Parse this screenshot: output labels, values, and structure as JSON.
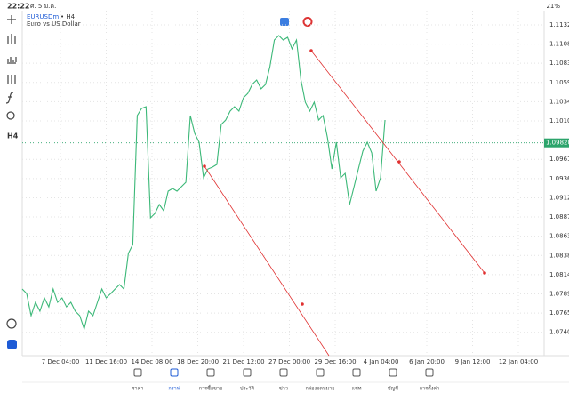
{
  "status_bar": {
    "time": "22:22",
    "date": "ศ. 5 ม.ค.",
    "battery": "21%"
  },
  "header": {
    "symbol": "EURUSDm",
    "timeframe": "• H4",
    "description": "Euro vs US Dollar"
  },
  "sidebar": {
    "timeframe": "H4"
  },
  "chart": {
    "ylim": [
      1.07107,
      1.11506
    ],
    "yticks": [
      {
        "value": 1.11325,
        "label": "1.11325"
      },
      {
        "value": 1.1108,
        "label": "1.11080"
      },
      {
        "value": 1.10835,
        "label": "1.10835"
      },
      {
        "value": 1.1059,
        "label": "1.10590"
      },
      {
        "value": 1.10345,
        "label": "1.10345"
      },
      {
        "value": 1.101,
        "label": "1.10100"
      },
      {
        "value": 1.0961,
        "label": "1.09610"
      },
      {
        "value": 1.09365,
        "label": "1.09365"
      },
      {
        "value": 1.0912,
        "label": "1.09120"
      },
      {
        "value": 1.08875,
        "label": "1.08875"
      },
      {
        "value": 1.0863,
        "label": "1.08630"
      },
      {
        "value": 1.08385,
        "label": "1.08385"
      },
      {
        "value": 1.0814,
        "label": "1.08140"
      },
      {
        "value": 1.07895,
        "label": "1.07895"
      },
      {
        "value": 1.0765,
        "label": "1.07650"
      },
      {
        "value": 1.07405,
        "label": "1.07405"
      }
    ],
    "xticks": [
      "7 Dec 04:00",
      "11 Dec 16:00",
      "14 Dec 08:00",
      "18 Dec 20:00",
      "21 Dec 12:00",
      "27 Dec 00:00",
      "29 Dec 16:00",
      "4 Jan 04:00",
      "6 Jan 20:00",
      "9 Jan 12:00",
      "12 Jan 04:00"
    ],
    "current_price": {
      "value": 1.0982,
      "label": "1.09820"
    },
    "values": [
      1.07957,
      1.079,
      1.07617,
      1.07787,
      1.07674,
      1.07844,
      1.0773,
      1.07957,
      1.07787,
      1.07844,
      1.0773,
      1.07787,
      1.07674,
      1.07617,
      1.07447,
      1.07674,
      1.07617,
      1.07787,
      1.07957,
      1.07844,
      1.079,
      1.07957,
      1.08014,
      1.07957,
      1.08411,
      1.08524,
      1.10168,
      1.10259,
      1.10282,
      1.08864,
      1.08921,
      1.09034,
      1.08955,
      1.09204,
      1.09238,
      1.09204,
      1.09261,
      1.09318,
      1.10168,
      1.09942,
      1.09828,
      1.09375,
      1.09488,
      1.09511,
      1.09545,
      1.10055,
      1.10112,
      1.10225,
      1.10282,
      1.10225,
      1.10395,
      1.10452,
      1.10565,
      1.10622,
      1.10509,
      1.10565,
      1.10792,
      1.11132,
      1.11189,
      1.11132,
      1.11166,
      1.11019,
      1.11132,
      1.10622,
      1.10338,
      1.10225,
      1.10338,
      1.10112,
      1.10168,
      1.09885,
      1.09488,
      1.09828,
      1.09375,
      1.09431,
      1.09034,
      1.09261,
      1.09488,
      1.09715,
      1.09828,
      1.09692,
      1.09204,
      1.09375,
      1.10112
    ]
  },
  "tabs": [
    "ราคา",
    "กราฟ",
    "การซื้อขาย",
    "ประวัติ",
    "ข่าว",
    "กล่องจดหมาย",
    "แชท",
    "บัญชี",
    "การตั้งค่า"
  ]
}
